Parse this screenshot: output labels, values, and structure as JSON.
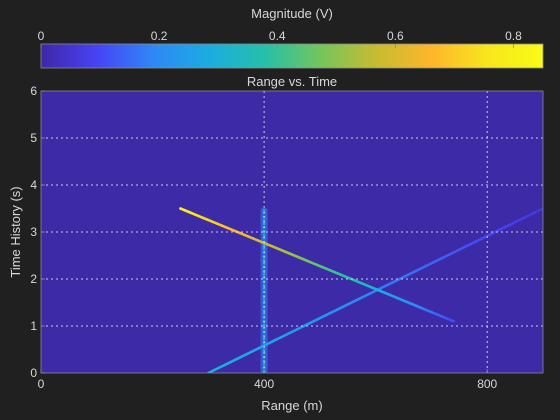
{
  "chart_data": {
    "type": "heatmap",
    "title": "Range vs. Time",
    "xlabel": "Range (m)",
    "ylabel": "Time History (s)",
    "xlim": [
      0,
      900
    ],
    "ylim": [
      0,
      6
    ],
    "xticks": [
      0,
      400,
      800
    ],
    "yticks": [
      0,
      1,
      2,
      3,
      4,
      5,
      6
    ],
    "grid": true,
    "colorbar": {
      "label": "Magnitude (V)",
      "range": [
        0,
        0.85
      ],
      "ticks": [
        0,
        0.2,
        0.4,
        0.6,
        0.8
      ],
      "tick_labels": [
        "0",
        "0.2",
        "0.4",
        "0.6",
        "0.8"
      ],
      "placement": "top",
      "colormap": [
        "#3e26a8",
        "#4743f5",
        "#2e87f7",
        "#1cace0",
        "#25c0aa",
        "#73c55c",
        "#c6bc31",
        "#fdb62c",
        "#f8e61d",
        "#f9fb15"
      ]
    },
    "background_magnitude": 0.02,
    "features": [
      {
        "name": "stationary target",
        "kind": "vertical",
        "range": 400,
        "time_start": 0,
        "time_end": 3.5,
        "magnitude": 0.32
      },
      {
        "name": "approaching target",
        "kind": "segment",
        "start": [
          300,
          0
        ],
        "end": [
          900,
          3.5
        ],
        "magnitude_start": 0.3,
        "magnitude_end": 0.06
      },
      {
        "name": "receding target",
        "kind": "segment",
        "start": [
          250,
          3.5
        ],
        "end": [
          740,
          1.1
        ],
        "magnitude_start": 0.8,
        "magnitude_end": 0.1
      }
    ]
  }
}
